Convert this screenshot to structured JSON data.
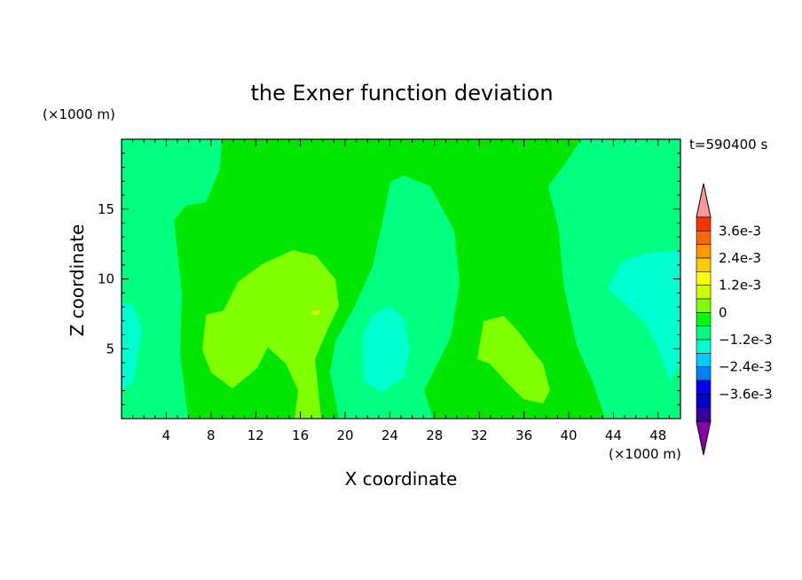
{
  "chart_data": {
    "type": "contour",
    "title": "the Exner function deviation",
    "xlabel": "X coordinate",
    "ylabel": "Z coordinate",
    "x_unit": "(×1000 m)",
    "y_unit": "(×1000 m)",
    "time_label": "t=590400 s",
    "xlim": [
      0,
      50
    ],
    "ylim": [
      0,
      20
    ],
    "x_ticks": [
      4,
      8,
      12,
      16,
      20,
      24,
      28,
      32,
      36,
      40,
      44,
      48
    ],
    "y_ticks": [
      5,
      10,
      15
    ],
    "colorbar": {
      "levels": [
        {
          "value": 0.0036,
          "color": "#ff3300"
        },
        {
          "value": 0.003,
          "color": "#ff6600"
        },
        {
          "value": 0.0024,
          "color": "#ff9900"
        },
        {
          "value": 0.0018,
          "color": "#ffcc00"
        },
        {
          "value": 0.0012,
          "color": "#ffff00"
        },
        {
          "value": 0.0006,
          "color": "#ccff00"
        },
        {
          "value": 0.0003,
          "color": "#80ff00"
        },
        {
          "value": 0.0,
          "color": "#00ff00"
        },
        {
          "value": -0.0006,
          "color": "#00ff80"
        },
        {
          "value": -0.0012,
          "color": "#00ffcc"
        },
        {
          "value": -0.0018,
          "color": "#00ccff"
        },
        {
          "value": -0.0024,
          "color": "#0080ff"
        },
        {
          "value": -0.003,
          "color": "#0000ff"
        },
        {
          "value": -0.0036,
          "color": "#0000cc"
        },
        {
          "value": -0.0042,
          "color": "#330099"
        }
      ],
      "over_color": "#ff9999",
      "under_color": "#8800aa",
      "tick_labels": [
        "3.6e-3",
        "2.4e-3",
        "1.2e-3",
        "0",
        "−1.2e-3",
        "−2.4e-3",
        "−3.6e-3"
      ]
    }
  }
}
